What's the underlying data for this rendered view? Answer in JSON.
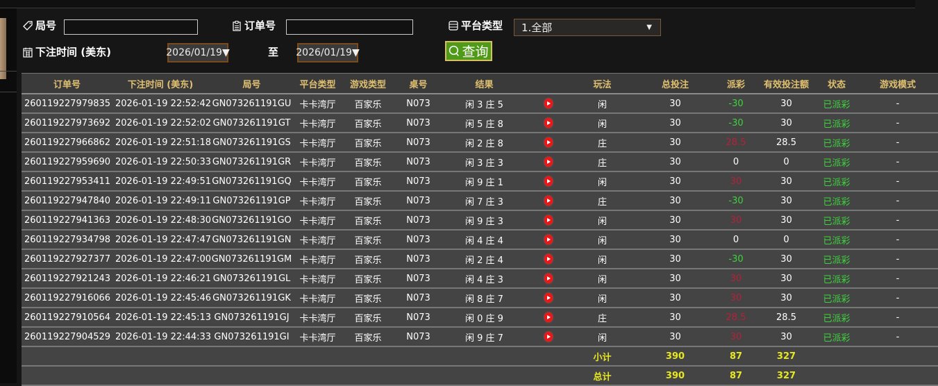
{
  "filters": {
    "round_label": "局号",
    "round_value": "",
    "order_label": "订单号",
    "order_value": "",
    "platform_label": "平台类型",
    "platform_value": "1.全部",
    "time_label": "下注时间 (美东)",
    "date_from": "2026/01/19▼",
    "to_label": "至",
    "date_to": "2026/01/19▼",
    "query_label": "查询"
  },
  "columns": [
    "订单号",
    "下注时间 (美东)",
    "局号",
    "平台类型",
    "游戏类型",
    "桌号",
    "结果",
    "",
    "玩法",
    "总投注",
    "派彩",
    "有效投注额",
    "状态",
    "游戏模式"
  ],
  "rows": [
    {
      "order": "260119227979835",
      "time": "2026-01-19 22:52:42",
      "round": "GN073261191GU",
      "platform": "卡卡湾厅",
      "game": "百家乐",
      "table": "N073",
      "result": "闲 3 庄 5",
      "bet": "闲",
      "total": "30",
      "payout": "-30",
      "payout_color": "green",
      "valid": "30",
      "status": "已派彩",
      "mode": "-"
    },
    {
      "order": "260119227973692",
      "time": "2026-01-19 22:52:02",
      "round": "GN073261191GT",
      "platform": "卡卡湾厅",
      "game": "百家乐",
      "table": "N073",
      "result": "闲 5 庄 8",
      "bet": "闲",
      "total": "30",
      "payout": "-30",
      "payout_color": "green",
      "valid": "30",
      "status": "已派彩",
      "mode": "-"
    },
    {
      "order": "260119227966862",
      "time": "2026-01-19 22:51:18",
      "round": "GN073261191GS",
      "platform": "卡卡湾厅",
      "game": "百家乐",
      "table": "N073",
      "result": "闲 2 庄 8",
      "bet": "庄",
      "total": "30",
      "payout": "28.5",
      "payout_color": "red",
      "valid": "28.5",
      "status": "已派彩",
      "mode": "-"
    },
    {
      "order": "260119227959690",
      "time": "2026-01-19 22:50:33",
      "round": "GN073261191GR",
      "platform": "卡卡湾厅",
      "game": "百家乐",
      "table": "N073",
      "result": "闲 3 庄 3",
      "bet": "庄",
      "total": "30",
      "payout": "0",
      "payout_color": "white",
      "valid": "0",
      "status": "已派彩",
      "mode": "-"
    },
    {
      "order": "260119227953411",
      "time": "2026-01-19 22:49:51",
      "round": "GN073261191GQ",
      "platform": "卡卡湾厅",
      "game": "百家乐",
      "table": "N073",
      "result": "闲 9 庄 1",
      "bet": "闲",
      "total": "30",
      "payout": "30",
      "payout_color": "red",
      "valid": "30",
      "status": "已派彩",
      "mode": "-"
    },
    {
      "order": "260119227947840",
      "time": "2026-01-19 22:49:11",
      "round": "GN073261191GP",
      "platform": "卡卡湾厅",
      "game": "百家乐",
      "table": "N073",
      "result": "闲 7 庄 3",
      "bet": "庄",
      "total": "30",
      "payout": "-30",
      "payout_color": "green",
      "valid": "30",
      "status": "已派彩",
      "mode": "-"
    },
    {
      "order": "260119227941363",
      "time": "2026-01-19 22:48:30",
      "round": "GN073261191GO",
      "platform": "卡卡湾厅",
      "game": "百家乐",
      "table": "N073",
      "result": "闲 9 庄 3",
      "bet": "闲",
      "total": "30",
      "payout": "30",
      "payout_color": "red",
      "valid": "30",
      "status": "已派彩",
      "mode": "-"
    },
    {
      "order": "260119227934798",
      "time": "2026-01-19 22:47:47",
      "round": "GN073261191GN",
      "platform": "卡卡湾厅",
      "game": "百家乐",
      "table": "N073",
      "result": "闲 4 庄 4",
      "bet": "闲",
      "total": "30",
      "payout": "0",
      "payout_color": "white",
      "valid": "0",
      "status": "已派彩",
      "mode": "-"
    },
    {
      "order": "260119227927377",
      "time": "2026-01-19 22:47:00",
      "round": "GN073261191GM",
      "platform": "卡卡湾厅",
      "game": "百家乐",
      "table": "N073",
      "result": "闲 2 庄 4",
      "bet": "闲",
      "total": "30",
      "payout": "-30",
      "payout_color": "green",
      "valid": "30",
      "status": "已派彩",
      "mode": "-"
    },
    {
      "order": "260119227921243",
      "time": "2026-01-19 22:46:21",
      "round": "GN073261191GL",
      "platform": "卡卡湾厅",
      "game": "百家乐",
      "table": "N073",
      "result": "闲 4 庄 3",
      "bet": "闲",
      "total": "30",
      "payout": "30",
      "payout_color": "red",
      "valid": "30",
      "status": "已派彩",
      "mode": "-"
    },
    {
      "order": "260119227916066",
      "time": "2026-01-19 22:45:46",
      "round": "GN073261191GK",
      "platform": "卡卡湾厅",
      "game": "百家乐",
      "table": "N073",
      "result": "闲 8 庄 7",
      "bet": "闲",
      "total": "30",
      "payout": "30",
      "payout_color": "red",
      "valid": "30",
      "status": "已派彩",
      "mode": "-"
    },
    {
      "order": "260119227910564",
      "time": "2026-01-19 22:45:13",
      "round": "GN073261191GJ",
      "platform": "卡卡湾厅",
      "game": "百家乐",
      "table": "N073",
      "result": "闲 0 庄 9",
      "bet": "庄",
      "total": "30",
      "payout": "28.5",
      "payout_color": "red",
      "valid": "28.5",
      "status": "已派彩",
      "mode": "-"
    },
    {
      "order": "260119227904529",
      "time": "2026-01-19 22:44:33",
      "round": "GN073261191GI",
      "platform": "卡卡湾厅",
      "game": "百家乐",
      "table": "N073",
      "result": "闲 9 庄 7",
      "bet": "闲",
      "total": "30",
      "payout": "30",
      "payout_color": "red",
      "valid": "30",
      "status": "已派彩",
      "mode": "-"
    }
  ],
  "subtotal": {
    "label": "小计",
    "total": "390",
    "payout": "87",
    "valid": "327"
  },
  "grand_total": {
    "label": "总计",
    "total": "390",
    "payout": "87",
    "valid": "327"
  },
  "colors": {
    "header_text": "#e0c070",
    "status_green": "#3cd43c",
    "payout_red": "#b8203a",
    "sum_yellow": "#e8e820",
    "query_green": "#4f9a18"
  }
}
